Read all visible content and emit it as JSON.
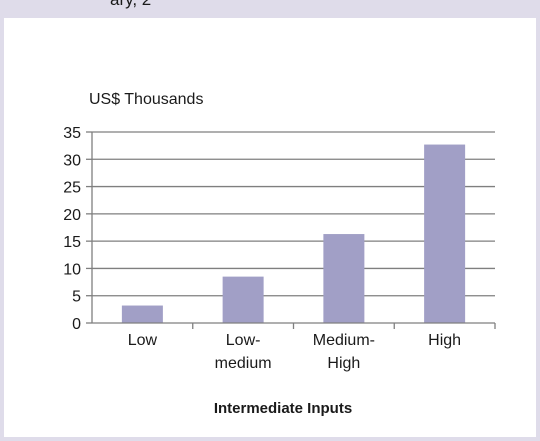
{
  "header": {
    "partial_text": "ary, 2"
  },
  "colors": {
    "bar": "#a19fc6",
    "grid": "#7f7f7f",
    "frame": "#dfdcea"
  },
  "chart_data": {
    "type": "bar",
    "title": "",
    "ylabel": "US$ Thousands",
    "xlabel": "Intermediate Inputs",
    "ylim": [
      0,
      35
    ],
    "yticks": [
      0,
      5,
      10,
      15,
      20,
      25,
      30,
      35
    ],
    "grid": true,
    "categories": [
      [
        "Low"
      ],
      [
        "Low-",
        "medium"
      ],
      [
        "Medium-",
        "High"
      ],
      [
        "High"
      ]
    ],
    "values": [
      3.2,
      8.5,
      16.3,
      32.7
    ]
  }
}
